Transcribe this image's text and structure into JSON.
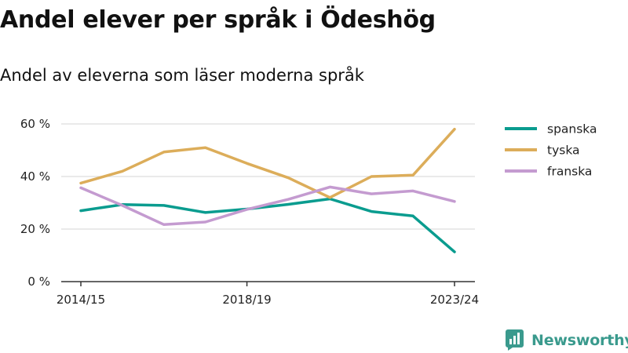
{
  "title": "Andel elever per språk i Ödeshög",
  "subtitle": "Andel av eleverna som läser moderna språk",
  "brand": "Newsworthy",
  "colors": {
    "spanska": "#0a9c8f",
    "tyska": "#dcad5a",
    "franska": "#c49bd0",
    "grid": "#dddddd",
    "axis": "#333333",
    "brand": "#3a9a8d"
  },
  "chart_data": {
    "type": "line",
    "x": [
      "2014/15",
      "2015/16",
      "2016/17",
      "2017/18",
      "2018/19",
      "2019/20",
      "2020/21",
      "2021/22",
      "2022/23",
      "2023/24"
    ],
    "x_tick_labels": [
      "2014/15",
      "2018/19",
      "2023/24"
    ],
    "y_tick_labels": [
      "0 %",
      "20 %",
      "40 %",
      "60 %"
    ],
    "y_ticks": [
      0,
      20,
      40,
      60
    ],
    "ylim": [
      0,
      60
    ],
    "grid": true,
    "legend_position": "right",
    "series": [
      {
        "name": "spanska",
        "values": [
          27,
          29.3,
          29,
          26.3,
          27.6,
          29.4,
          31.5,
          26.7,
          25,
          11.3
        ]
      },
      {
        "name": "tyska",
        "values": [
          37.5,
          42,
          49.3,
          51,
          45,
          39.5,
          32,
          40,
          40.5,
          58
        ]
      },
      {
        "name": "franska",
        "values": [
          35.7,
          29,
          21.7,
          22.7,
          27.5,
          31.3,
          36,
          33.4,
          34.5,
          30.5
        ]
      }
    ]
  }
}
